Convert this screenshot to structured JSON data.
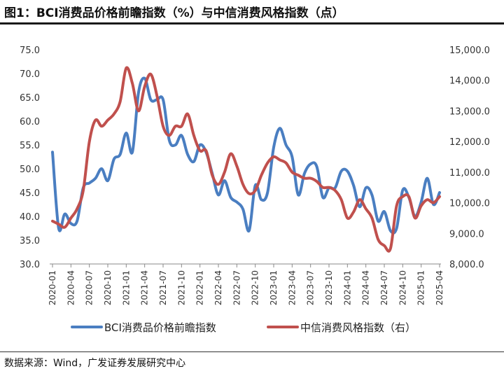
{
  "figure": {
    "title": "图1：BCI消费品价格前瞻指数（%）与中信消费风格指数（点）",
    "source": "数据来源：Wind，广发证券发展研究中心"
  },
  "chart_data": {
    "type": "line",
    "left_axis": {
      "ylim": [
        30,
        75
      ],
      "ticks": [
        "30.0",
        "35.0",
        "40.0",
        "45.0",
        "50.0",
        "55.0",
        "60.0",
        "65.0",
        "70.0",
        "75.0"
      ]
    },
    "right_axis": {
      "ylim": [
        8000,
        15000
      ],
      "ticks": [
        "8,000.0",
        "9,000.0",
        "10,000.0",
        "11,000.0",
        "12,000.0",
        "13,000.0",
        "14,000.0",
        "15,000.0"
      ]
    },
    "x_ticks": [
      "2020-01",
      "2020-04",
      "2020-07",
      "2020-10",
      "2021-01",
      "2021-04",
      "2021-07",
      "2021-10",
      "2022-01",
      "2022-04",
      "2022-07",
      "2022-10",
      "2023-01",
      "2023-04",
      "2023-07",
      "2023-10",
      "2024-01",
      "2024-04",
      "2024-07",
      "2024-10",
      "2025-01",
      "2025-04"
    ],
    "grid": false,
    "legend_position": "bottom",
    "series": [
      {
        "name": "BCI消费品价格前瞻指数",
        "axis": "left",
        "color": "#4a7ec1",
        "values": [
          53.5,
          37.5,
          40.5,
          38.5,
          39.0,
          46.0,
          47.0,
          48.0,
          50.0,
          47.5,
          52.0,
          53.0,
          57.5,
          53.5,
          66.0,
          69.0,
          64.5,
          64.5,
          64.5,
          56.0,
          55.0,
          57.0,
          53.0,
          51.5,
          55.0,
          53.5,
          49.0,
          44.5,
          47.5,
          44.0,
          43.0,
          41.5,
          37.0,
          46.5,
          43.5,
          45.0,
          54.5,
          58.5,
          55.0,
          52.5,
          44.5,
          49.0,
          51.0,
          50.5,
          44.0,
          46.0,
          46.0,
          49.5,
          49.5,
          46.5,
          42.0,
          46.0,
          44.5,
          39.0,
          41.0,
          37.0,
          37.5,
          45.5,
          44.0,
          40.0,
          43.0,
          48.0,
          42.5,
          45.0
        ]
      },
      {
        "name": "中信消费风格指数（右）",
        "axis": "right",
        "color": "#c0504d",
        "values": [
          9400,
          9300,
          9200,
          9500,
          9800,
          10400,
          12000,
          12700,
          12500,
          12700,
          12900,
          13300,
          14400,
          13900,
          13000,
          13800,
          14200,
          13500,
          12500,
          12200,
          12500,
          12500,
          12900,
          12200,
          11700,
          11700,
          10900,
          10600,
          11000,
          11600,
          11200,
          10600,
          10300,
          10400,
          10900,
          11300,
          11500,
          11400,
          11300,
          11000,
          10900,
          10800,
          10800,
          10700,
          10500,
          10500,
          10400,
          10100,
          9500,
          9700,
          10100,
          9800,
          9500,
          8800,
          8600,
          8500,
          9900,
          10200,
          10200,
          9500,
          9900,
          10100,
          10000,
          10200
        ]
      }
    ]
  }
}
